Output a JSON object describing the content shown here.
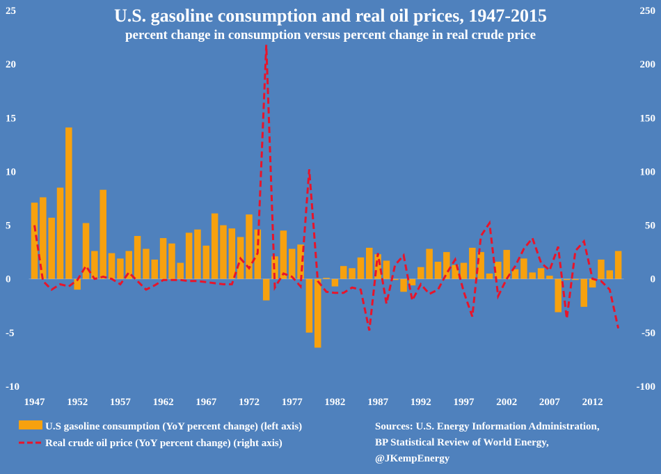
{
  "chart_data": {
    "type": "bar",
    "title": "U.S. gasoline consumption and real oil prices, 1947-2015",
    "subtitle": "percent change in consumption versus percent change in real crude price",
    "x": [
      1947,
      1948,
      1949,
      1950,
      1951,
      1952,
      1953,
      1954,
      1955,
      1956,
      1957,
      1958,
      1959,
      1960,
      1961,
      1962,
      1963,
      1964,
      1965,
      1966,
      1967,
      1968,
      1969,
      1970,
      1971,
      1972,
      1973,
      1974,
      1975,
      1976,
      1977,
      1978,
      1979,
      1980,
      1981,
      1982,
      1983,
      1984,
      1985,
      1986,
      1987,
      1988,
      1989,
      1990,
      1991,
      1992,
      1993,
      1994,
      1995,
      1996,
      1997,
      1998,
      1999,
      2000,
      2001,
      2002,
      2003,
      2004,
      2005,
      2006,
      2007,
      2008,
      2009,
      2010,
      2011,
      2012,
      2013,
      2014,
      2015
    ],
    "x_tick_labels": [
      "1947",
      "1952",
      "1957",
      "1962",
      "1967",
      "1972",
      "1977",
      "1982",
      "1987",
      "1992",
      "1997",
      "2002",
      "2007",
      "2012"
    ],
    "left_axis": {
      "ylim": [
        -10,
        25
      ],
      "ticks": [
        "-10",
        "-5",
        "0",
        "5",
        "10",
        "15",
        "20",
        "25"
      ]
    },
    "right_axis": {
      "ylim": [
        -100,
        250
      ],
      "ticks": [
        "-100",
        "-50",
        "0",
        "50",
        "100",
        "150",
        "200",
        "250"
      ]
    },
    "series": [
      {
        "name": "U.S gasoline consumption (YoY percent change) (left axis)",
        "type": "bar",
        "axis": "left",
        "color": "#f7a10e",
        "values": [
          7.1,
          7.6,
          5.7,
          8.5,
          14.1,
          -1.0,
          5.2,
          2.6,
          8.3,
          2.4,
          1.9,
          2.6,
          4.0,
          2.8,
          1.8,
          3.8,
          3.3,
          1.5,
          4.3,
          4.6,
          3.1,
          6.1,
          5.0,
          4.7,
          3.9,
          6.0,
          4.6,
          -2.0,
          2.1,
          4.5,
          2.8,
          3.2,
          -5.0,
          -6.4,
          0.1,
          -0.7,
          1.2,
          1.0,
          2.0,
          2.9,
          2.3,
          1.7,
          -0.1,
          -1.2,
          -0.6,
          1.1,
          2.8,
          1.6,
          2.5,
          1.3,
          1.5,
          2.9,
          2.5,
          0.5,
          1.6,
          2.7,
          0.9,
          1.9,
          0.6,
          1.0,
          0.3,
          -3.1,
          -0.1,
          -0.1,
          -2.6,
          -0.8,
          1.8,
          0.8,
          2.6
        ]
      },
      {
        "name": "Real crude oil price (YoY percent change) (right axis)",
        "type": "line",
        "axis": "right",
        "color": "#e8142a",
        "dash": true,
        "values": [
          50,
          -2,
          -10,
          -5,
          -7,
          -1,
          12,
          0,
          2,
          0,
          -5,
          6,
          -2,
          -10,
          -6,
          -1,
          -1,
          -1,
          -2,
          -2,
          -3,
          -4,
          -5,
          -5,
          19,
          10,
          24,
          218,
          -8,
          5,
          2,
          -7,
          102,
          -2,
          -12,
          -13,
          -13,
          -8,
          -10,
          -48,
          24,
          -23,
          13,
          22,
          -20,
          -5,
          -14,
          -10,
          5,
          18,
          -12,
          -35,
          40,
          52,
          -16,
          0,
          12,
          28,
          38,
          15,
          8,
          30,
          -37,
          26,
          35,
          0,
          -2,
          -10,
          -46
        ]
      }
    ],
    "sources": [
      "Sources: U.S. Energy Information Administration,",
      "BP Statistical Review of World Energy,",
      "@JKempEnergy"
    ],
    "grid": false,
    "legend_placement": "bottom-left"
  }
}
